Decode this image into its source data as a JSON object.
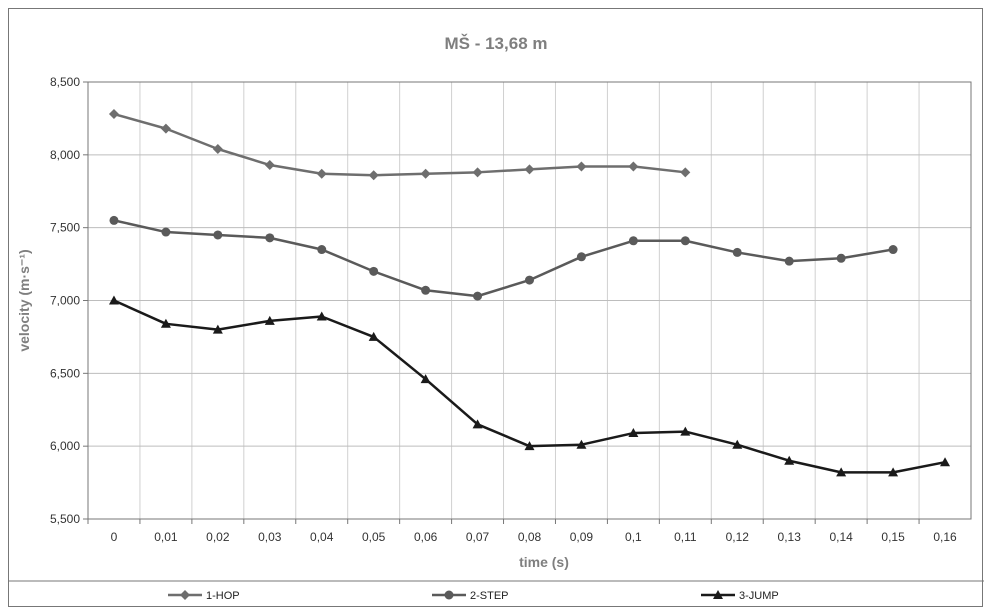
{
  "chart_data": {
    "type": "line",
    "title": "MŠ - 13,68 m",
    "xlabel": "time (s)",
    "ylabel": "velocity (m·s⁻¹)",
    "categories": [
      "0",
      "0,01",
      "0,02",
      "0,03",
      "0,04",
      "0,05",
      "0,06",
      "0,07",
      "0,08",
      "0,09",
      "0,1",
      "0,11",
      "0,12",
      "0,13",
      "0,14",
      "0,15",
      "0,16"
    ],
    "y_ticks": [
      "5,500",
      "6,000",
      "6,500",
      "7,000",
      "7,500",
      "8,000",
      "8,500"
    ],
    "ylim": [
      5.5,
      8.5
    ],
    "grid": true,
    "legend_position": "bottom",
    "series": [
      {
        "name": "1-HOP",
        "marker": "diamond",
        "color": "#6e6e6e",
        "values": [
          8.28,
          8.18,
          8.04,
          7.93,
          7.87,
          7.86,
          7.87,
          7.88,
          7.9,
          7.92,
          7.92,
          7.88,
          null,
          null,
          null,
          null,
          null
        ]
      },
      {
        "name": "2-STEP",
        "marker": "circle",
        "color": "#5a5a5a",
        "values": [
          7.55,
          7.47,
          7.45,
          7.43,
          7.35,
          7.2,
          7.07,
          7.03,
          7.14,
          7.3,
          7.41,
          7.41,
          7.33,
          7.27,
          7.29,
          7.35,
          null
        ]
      },
      {
        "name": "3-JUMP",
        "marker": "triangle",
        "color": "#1a1a1a",
        "values": [
          7.0,
          6.84,
          6.8,
          6.86,
          6.89,
          6.75,
          6.46,
          6.15,
          6.0,
          6.01,
          6.09,
          6.1,
          6.01,
          5.9,
          5.82,
          5.82,
          5.89
        ]
      }
    ]
  }
}
